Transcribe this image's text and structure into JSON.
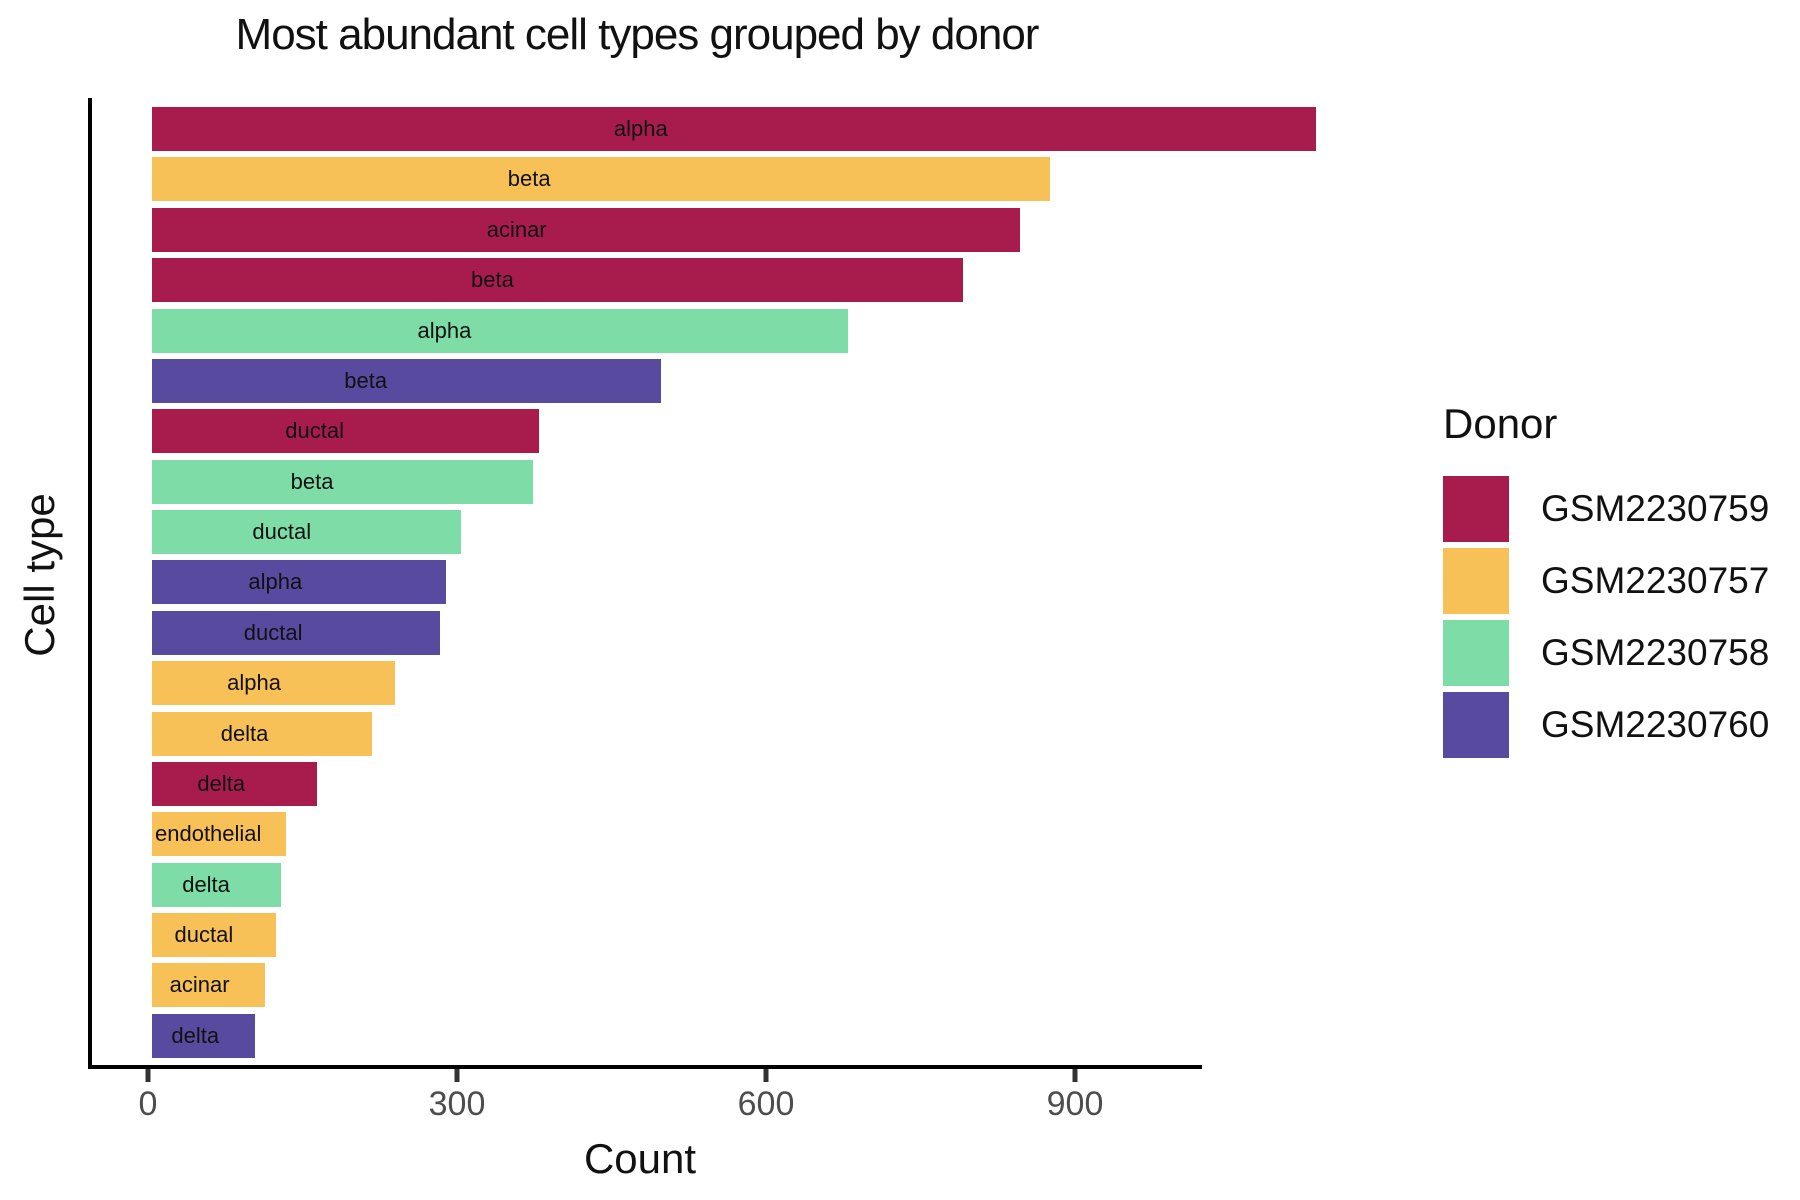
{
  "page": {
    "background": "#ffffff"
  },
  "chart_data": {
    "type": "bar",
    "orientation": "horizontal",
    "title": "Most abundant cell types grouped by donor",
    "xlabel": "Count",
    "ylabel": "Cell type",
    "x_ticks": [
      0,
      300,
      600,
      900
    ],
    "xlim": [
      0,
      1190
    ],
    "grid": false,
    "legend_position": "right",
    "axis_color": "#000000",
    "tick_color": "#333333",
    "tick_label_color": "#4d4d4d",
    "legend": {
      "title": "Donor",
      "entries": [
        {
          "label": "GSM2230759",
          "color": "#A71C4D"
        },
        {
          "label": "GSM2230757",
          "color": "#F8C158"
        },
        {
          "label": "GSM2230758",
          "color": "#7EDCA7"
        },
        {
          "label": "GSM2230760",
          "color": "#584A9F"
        }
      ]
    },
    "bars": [
      {
        "cell_type": "alpha",
        "donor": "GSM2230759",
        "count": 1130
      },
      {
        "cell_type": "beta",
        "donor": "GSM2230757",
        "count": 872
      },
      {
        "cell_type": "acinar",
        "donor": "GSM2230759",
        "count": 843
      },
      {
        "cell_type": "beta",
        "donor": "GSM2230759",
        "count": 787
      },
      {
        "cell_type": "alpha",
        "donor": "GSM2230758",
        "count": 676
      },
      {
        "cell_type": "beta",
        "donor": "GSM2230760",
        "count": 494
      },
      {
        "cell_type": "ductal",
        "donor": "GSM2230759",
        "count": 376
      },
      {
        "cell_type": "beta",
        "donor": "GSM2230758",
        "count": 370
      },
      {
        "cell_type": "ductal",
        "donor": "GSM2230758",
        "count": 300
      },
      {
        "cell_type": "alpha",
        "donor": "GSM2230760",
        "count": 285
      },
      {
        "cell_type": "ductal",
        "donor": "GSM2230760",
        "count": 280
      },
      {
        "cell_type": "alpha",
        "donor": "GSM2230757",
        "count": 236
      },
      {
        "cell_type": "delta",
        "donor": "GSM2230757",
        "count": 214
      },
      {
        "cell_type": "delta",
        "donor": "GSM2230759",
        "count": 160
      },
      {
        "cell_type": "endothelial",
        "donor": "GSM2230757",
        "count": 130
      },
      {
        "cell_type": "delta",
        "donor": "GSM2230758",
        "count": 125
      },
      {
        "cell_type": "ductal",
        "donor": "GSM2230757",
        "count": 120
      },
      {
        "cell_type": "acinar",
        "donor": "GSM2230757",
        "count": 110
      },
      {
        "cell_type": "delta",
        "donor": "GSM2230760",
        "count": 100
      }
    ]
  }
}
